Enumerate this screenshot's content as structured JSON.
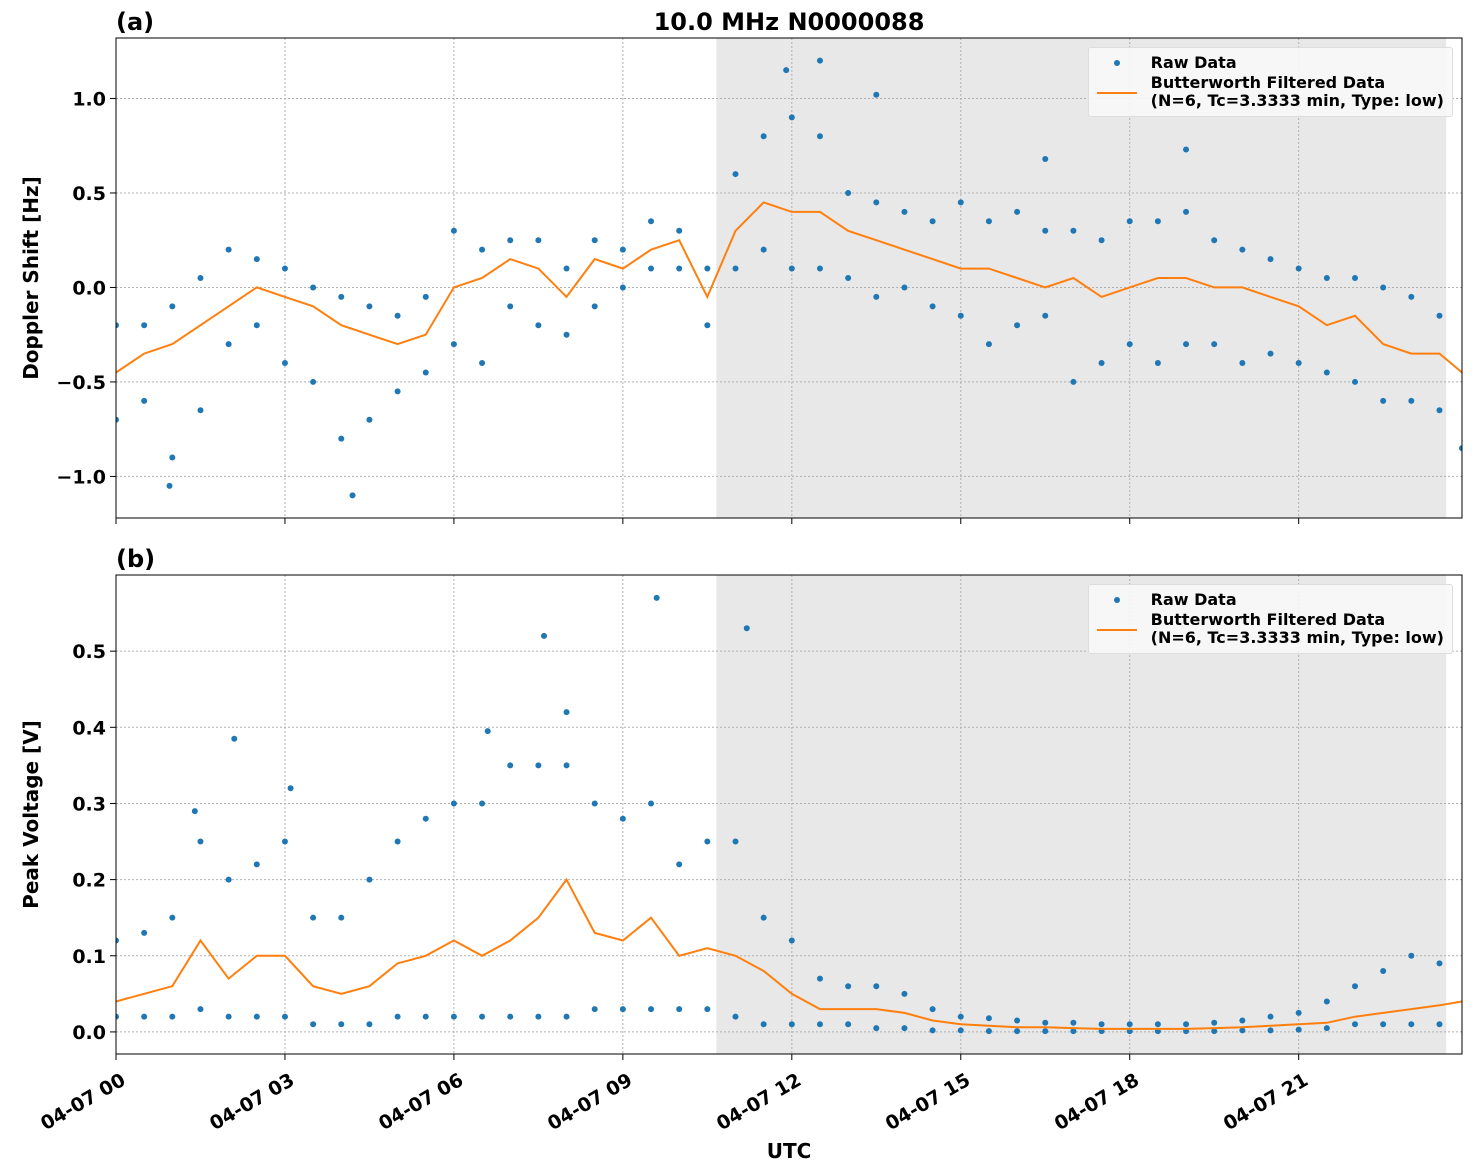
{
  "chart_data": [
    {
      "type": "line",
      "title": "10.0 MHz N0000088",
      "panel_label": "(a)",
      "ylabel": "Doppler Shift [Hz]",
      "xlim": [
        0,
        23.9
      ],
      "ylim": [
        -1.22,
        1.32
      ],
      "yticks": [
        {
          "value": -1,
          "label": "−1.0"
        },
        {
          "value": -0.5,
          "label": "−0.5"
        },
        {
          "value": 0,
          "label": "0.0"
        },
        0.5,
        {
          "value": 1,
          "label": "1.0"
        }
      ],
      "grid": true,
      "legend": "upper right",
      "shaded_span": [
        10.66,
        23.62
      ],
      "series": [
        {
          "name": "Raw Data",
          "kind": "scatter",
          "color": "#1f77b4",
          "x": [
            0,
            0,
            0.5,
            0.5,
            1,
            1,
            1.5,
            1.5,
            2,
            2,
            2.5,
            2.5,
            3,
            3,
            3.5,
            3.5,
            4,
            4,
            4.5,
            4.5,
            5,
            5,
            5.5,
            5.5,
            6,
            6,
            6.5,
            6.5,
            7,
            7,
            7.5,
            7.5,
            8,
            8,
            8.5,
            8.5,
            9,
            9,
            9.5,
            9.5,
            10,
            10,
            10.5,
            10.5,
            11,
            11,
            11.5,
            11.5,
            12,
            12,
            12.5,
            12.5,
            13,
            13,
            13.5,
            13.5,
            14,
            14,
            14.5,
            14.5,
            15,
            15,
            15.5,
            15.5,
            16,
            16,
            16.5,
            16.5,
            17,
            17,
            17.5,
            17.5,
            18,
            18,
            18.5,
            18.5,
            19,
            19,
            19.5,
            19.5,
            20,
            20,
            20.5,
            20.5,
            21,
            21,
            21.5,
            21.5,
            22,
            22,
            22.5,
            22.5,
            23,
            23,
            23.5,
            23.5,
            0.95,
            4.2,
            12.5,
            11.9,
            13.5,
            19,
            16.5,
            23.9
          ],
          "values": [
            -0.2,
            -0.7,
            -0.2,
            -0.6,
            -0.1,
            -0.9,
            0.05,
            -0.65,
            0.2,
            -0.3,
            0.15,
            -0.2,
            0.1,
            -0.4,
            0,
            -0.5,
            -0.05,
            -0.8,
            -0.1,
            -0.7,
            -0.15,
            -0.55,
            -0.05,
            -0.45,
            0.3,
            -0.3,
            0.2,
            -0.4,
            0.25,
            -0.1,
            0.25,
            -0.2,
            0.1,
            -0.25,
            0.25,
            -0.1,
            0.2,
            0,
            0.35,
            0.1,
            0.3,
            0.1,
            0.1,
            -0.2,
            0.6,
            0.1,
            0.8,
            0.2,
            0.9,
            0.1,
            0.8,
            0.1,
            0.5,
            0.05,
            0.45,
            -0.05,
            0.4,
            0,
            0.35,
            -0.1,
            0.45,
            -0.15,
            0.35,
            -0.3,
            0.4,
            -0.2,
            0.3,
            -0.15,
            0.3,
            -0.5,
            0.25,
            -0.4,
            0.35,
            -0.3,
            0.35,
            -0.4,
            0.4,
            -0.3,
            0.25,
            -0.3,
            0.2,
            -0.4,
            0.15,
            -0.35,
            0.1,
            -0.4,
            0.05,
            -0.45,
            0.05,
            -0.5,
            0,
            -0.6,
            -0.05,
            -0.6,
            -0.15,
            -0.65,
            -1.05,
            -1.1,
            1.2,
            1.15,
            1.02,
            0.73,
            0.68,
            -0.85
          ]
        },
        {
          "name": "Butterworth Filtered Data\n(N=6, Tc=3.3333 min, Type: low)",
          "kind": "line",
          "color": "#ff7f0e",
          "x": [
            0,
            0.5,
            1,
            1.5,
            2,
            2.5,
            3,
            3.5,
            4,
            4.5,
            5,
            5.5,
            6,
            6.5,
            7,
            7.5,
            8,
            8.5,
            9,
            9.5,
            10,
            10.5,
            11,
            11.5,
            12,
            12.5,
            13,
            13.5,
            14,
            14.5,
            15,
            15.5,
            16,
            16.5,
            17,
            17.5,
            18,
            18.5,
            19,
            19.5,
            20,
            20.5,
            21,
            21.5,
            22,
            22.5,
            23,
            23.5,
            23.9
          ],
          "values": [
            -0.45,
            -0.35,
            -0.3,
            -0.2,
            -0.1,
            0,
            -0.05,
            -0.1,
            -0.2,
            -0.25,
            -0.3,
            -0.25,
            0,
            0.05,
            0.15,
            0.1,
            -0.05,
            0.15,
            0.1,
            0.2,
            0.25,
            -0.05,
            0.3,
            0.45,
            0.4,
            0.4,
            0.3,
            0.25,
            0.2,
            0.15,
            0.1,
            0.1,
            0.05,
            0,
            0.05,
            -0.05,
            0,
            0.05,
            0.05,
            0,
            0,
            -0.05,
            -0.1,
            -0.2,
            -0.15,
            -0.3,
            -0.35,
            -0.35,
            -0.45
          ]
        }
      ]
    },
    {
      "type": "line",
      "panel_label": "(b)",
      "ylabel": "Peak Voltage [V]",
      "xlabel": "UTC",
      "xlim": [
        0,
        23.9
      ],
      "ylim": [
        -0.029,
        0.6
      ],
      "xticks": [
        {
          "value": 0,
          "label": "04-07 00"
        },
        {
          "value": 3,
          "label": "04-07 03"
        },
        {
          "value": 6,
          "label": "04-07 06"
        },
        {
          "value": 9,
          "label": "04-07 09"
        },
        {
          "value": 12,
          "label": "04-07 12"
        },
        {
          "value": 15,
          "label": "04-07 15"
        },
        {
          "value": 18,
          "label": "04-07 18"
        },
        {
          "value": 21,
          "label": "04-07 21"
        }
      ],
      "yticks": [
        {
          "value": 0,
          "label": "0.0"
        },
        0.1,
        0.2,
        0.3,
        0.4,
        0.5
      ],
      "grid": true,
      "legend": "upper right",
      "shaded_span": [
        10.66,
        23.62
      ],
      "series": [
        {
          "name": "Raw Data",
          "kind": "scatter",
          "color": "#1f77b4",
          "x": [
            0,
            0,
            0.5,
            0.5,
            1,
            1,
            1.5,
            1.5,
            2,
            2,
            2.5,
            2.5,
            3,
            3,
            3.5,
            3.5,
            4,
            4,
            4.5,
            4.5,
            5,
            5,
            5.5,
            5.5,
            6,
            6,
            6.5,
            6.5,
            7,
            7,
            7.5,
            7.5,
            8,
            8,
            8.5,
            8.5,
            9,
            9,
            9.5,
            9.5,
            10,
            10,
            10.5,
            10.5,
            11,
            11,
            11.5,
            11.5,
            12,
            12,
            12.5,
            12.5,
            13,
            13,
            13.5,
            13.5,
            14,
            14,
            14.5,
            14.5,
            15,
            15,
            15.5,
            15.5,
            16,
            16,
            16.5,
            16.5,
            17,
            17,
            17.5,
            17.5,
            18,
            18,
            18.5,
            18.5,
            19,
            19,
            19.5,
            19.5,
            20,
            20,
            20.5,
            20.5,
            21,
            21,
            21.5,
            21.5,
            22,
            22,
            22.5,
            22.5,
            23,
            23,
            23.5,
            23.5,
            2.1,
            3.1,
            6.6,
            7.6,
            8,
            9.6,
            11.2,
            1.4
          ],
          "values": [
            0.12,
            0.02,
            0.13,
            0.02,
            0.15,
            0.02,
            0.25,
            0.03,
            0.2,
            0.02,
            0.22,
            0.02,
            0.25,
            0.02,
            0.15,
            0.01,
            0.15,
            0.01,
            0.2,
            0.01,
            0.25,
            0.02,
            0.28,
            0.02,
            0.3,
            0.02,
            0.3,
            0.02,
            0.35,
            0.02,
            0.35,
            0.02,
            0.35,
            0.02,
            0.3,
            0.03,
            0.28,
            0.03,
            0.3,
            0.03,
            0.22,
            0.03,
            0.25,
            0.03,
            0.25,
            0.02,
            0.15,
            0.01,
            0.12,
            0.01,
            0.07,
            0.01,
            0.06,
            0.01,
            0.06,
            0.005,
            0.05,
            0.005,
            0.03,
            0.002,
            0.02,
            0.002,
            0.018,
            0.001,
            0.015,
            0.001,
            0.012,
            0.001,
            0.012,
            0.001,
            0.01,
            0.001,
            0.01,
            0.001,
            0.01,
            0.001,
            0.01,
            0.001,
            0.012,
            0.001,
            0.015,
            0.002,
            0.02,
            0.002,
            0.025,
            0.003,
            0.04,
            0.005,
            0.06,
            0.01,
            0.08,
            0.01,
            0.1,
            0.01,
            0.09,
            0.01,
            0.385,
            0.32,
            0.395,
            0.52,
            0.42,
            0.57,
            0.53,
            0.29
          ]
        },
        {
          "name": "Butterworth Filtered Data\n(N=6, Tc=3.3333 min, Type: low)",
          "kind": "line",
          "color": "#ff7f0e",
          "x": [
            0,
            0.5,
            1,
            1.5,
            2,
            2.5,
            3,
            3.5,
            4,
            4.5,
            5,
            5.5,
            6,
            6.5,
            7,
            7.5,
            8,
            8.5,
            9,
            9.5,
            10,
            10.5,
            11,
            11.5,
            12,
            12.5,
            13,
            13.5,
            14,
            14.5,
            15,
            15.5,
            16,
            16.5,
            17,
            17.5,
            18,
            18.5,
            19,
            19.5,
            20,
            20.5,
            21,
            21.5,
            22,
            22.5,
            23,
            23.5,
            23.9
          ],
          "values": [
            0.04,
            0.05,
            0.06,
            0.12,
            0.07,
            0.1,
            0.1,
            0.06,
            0.05,
            0.06,
            0.09,
            0.1,
            0.12,
            0.1,
            0.12,
            0.15,
            0.2,
            0.13,
            0.12,
            0.15,
            0.1,
            0.11,
            0.1,
            0.08,
            0.05,
            0.03,
            0.03,
            0.03,
            0.025,
            0.015,
            0.01,
            0.008,
            0.006,
            0.006,
            0.005,
            0.004,
            0.004,
            0.004,
            0.004,
            0.005,
            0.006,
            0.008,
            0.01,
            0.012,
            0.02,
            0.025,
            0.03,
            0.035,
            0.04
          ]
        }
      ]
    }
  ]
}
